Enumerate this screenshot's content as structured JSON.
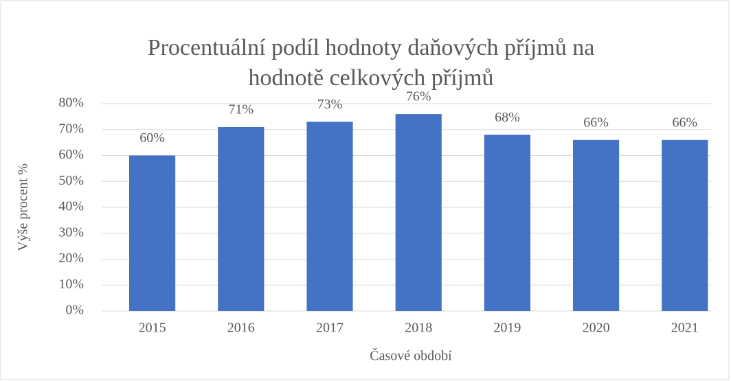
{
  "chart_data": {
    "type": "bar",
    "title": "Procentuální podíl hodnoty daňových příjmů na hodnotě celkových příjmů",
    "x_label": "Časové období",
    "y_label": "Výše procent %",
    "categories": [
      "2015",
      "2016",
      "2017",
      "2018",
      "2019",
      "2020",
      "2021"
    ],
    "values": [
      60,
      71,
      73,
      76,
      68,
      66,
      66
    ],
    "value_labels": [
      "60%",
      "71%",
      "73%",
      "76%",
      "68%",
      "66%",
      "66%"
    ],
    "color": "#4472c4",
    "ylim": [
      0,
      80
    ],
    "yticks": [
      {
        "value": 0,
        "label": "0%"
      },
      {
        "value": 10,
        "label": "10%"
      },
      {
        "value": 20,
        "label": "20%"
      },
      {
        "value": 30,
        "label": "30%"
      },
      {
        "value": 40,
        "label": "40%"
      },
      {
        "value": 50,
        "label": "50%"
      },
      {
        "value": 60,
        "label": "60%"
      },
      {
        "value": 70,
        "label": "70%"
      },
      {
        "value": 80,
        "label": "80%"
      }
    ],
    "grid": true
  }
}
